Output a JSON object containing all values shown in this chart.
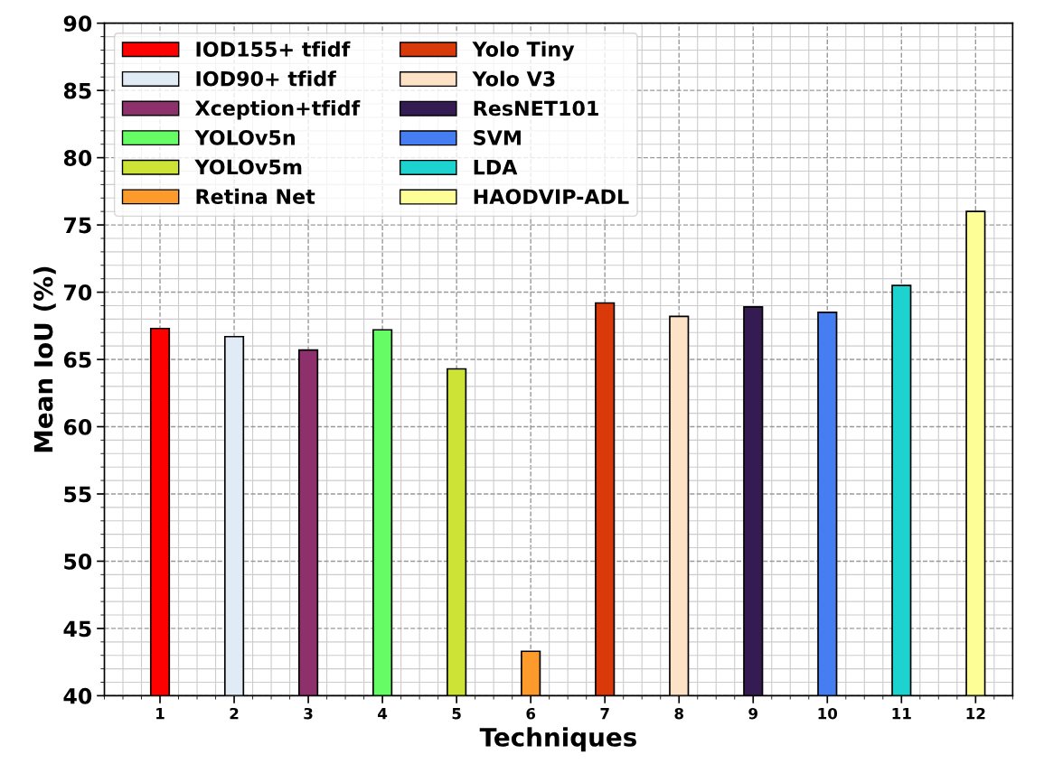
{
  "chart_data": {
    "type": "bar",
    "xlabel": "Techniques",
    "ylabel": "Mean IoU (%)",
    "categories": [
      "1",
      "2",
      "3",
      "4",
      "5",
      "6",
      "7",
      "8",
      "9",
      "10",
      "11",
      "12"
    ],
    "series": [
      {
        "name": "IOD155+ tfidf",
        "color": "#ff0000",
        "values": [
          67.3,
          null,
          null,
          null,
          null,
          null,
          null,
          null,
          null,
          null,
          null,
          null
        ]
      },
      {
        "name": "IOD90+ tfidf",
        "color": "#e1ebf5",
        "values": [
          null,
          66.7,
          null,
          null,
          null,
          null,
          null,
          null,
          null,
          null,
          null,
          null
        ]
      },
      {
        "name": "Xception+tfidf",
        "color": "#8e306c",
        "values": [
          null,
          null,
          65.7,
          null,
          null,
          null,
          null,
          null,
          null,
          null,
          null,
          null
        ]
      },
      {
        "name": "YOLOv5n",
        "color": "#66fc66",
        "values": [
          null,
          null,
          null,
          67.2,
          null,
          null,
          null,
          null,
          null,
          null,
          null,
          null
        ]
      },
      {
        "name": "YOLOv5m",
        "color": "#cde436",
        "values": [
          null,
          null,
          null,
          null,
          64.3,
          null,
          null,
          null,
          null,
          null,
          null,
          null
        ]
      },
      {
        "name": "Retina Net",
        "color": "#fd9a2c",
        "values": [
          null,
          null,
          null,
          null,
          null,
          43.3,
          null,
          null,
          null,
          null,
          null,
          null
        ]
      },
      {
        "name": "Yolo Tiny",
        "color": "#da3a0a",
        "values": [
          null,
          null,
          null,
          null,
          null,
          null,
          69.2,
          null,
          null,
          null,
          null,
          null
        ]
      },
      {
        "name": "Yolo V3",
        "color": "#fde2c6",
        "values": [
          null,
          null,
          null,
          null,
          null,
          null,
          null,
          68.2,
          null,
          null,
          null,
          null
        ]
      },
      {
        "name": "ResNET101",
        "color": "#341c52",
        "values": [
          null,
          null,
          null,
          null,
          null,
          null,
          null,
          null,
          68.9,
          null,
          null,
          null
        ]
      },
      {
        "name": "SVM",
        "color": "#467df0",
        "values": [
          null,
          null,
          null,
          null,
          null,
          null,
          null,
          null,
          null,
          68.5,
          null,
          null
        ]
      },
      {
        "name": "LDA",
        "color": "#1dd3cf",
        "values": [
          null,
          null,
          null,
          null,
          null,
          null,
          null,
          null,
          null,
          null,
          70.5,
          null
        ]
      },
      {
        "name": "HAODVIP-ADL",
        "color": "#fefe96",
        "values": [
          null,
          null,
          null,
          null,
          null,
          null,
          null,
          null,
          null,
          null,
          null,
          76.0
        ]
      }
    ],
    "ylim": [
      40,
      90
    ],
    "yticks": [
      40,
      45,
      50,
      55,
      60,
      65,
      70,
      75,
      80,
      85,
      90
    ],
    "grid": true,
    "legend": "top left"
  }
}
